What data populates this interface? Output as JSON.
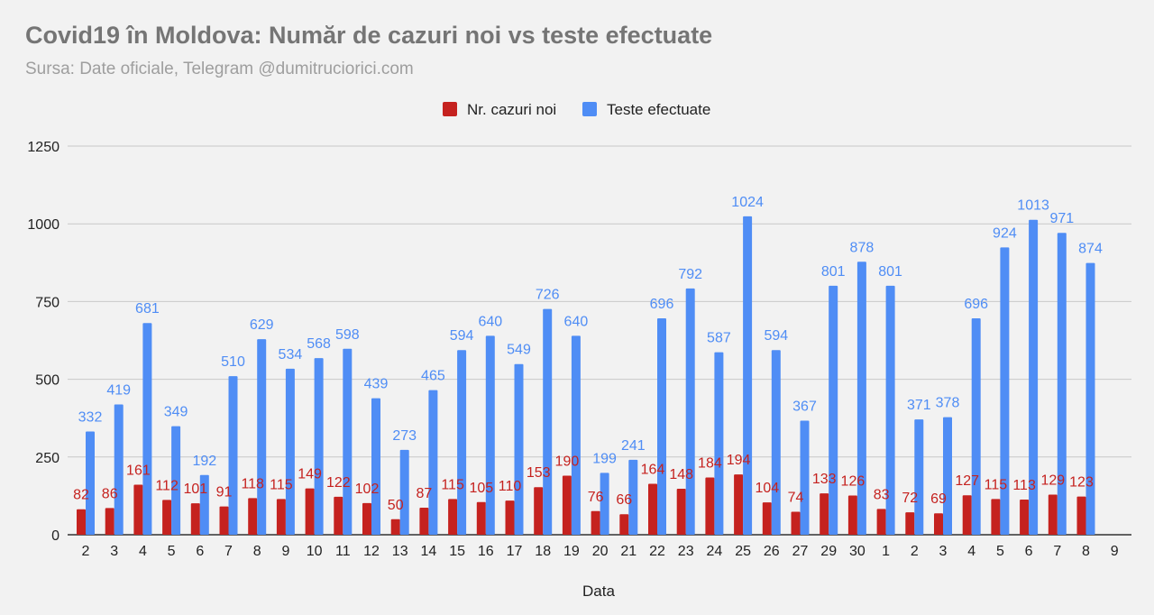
{
  "chart_data": {
    "type": "bar",
    "title": "Covid19 în Moldova: Număr de cazuri noi vs teste efectuate",
    "subtitle": "Sursa: Date oficiale, Telegram @dumitruciorici.com",
    "xlabel": "Data",
    "ylabel": "",
    "ylim": [
      0,
      1250
    ],
    "yticks": [
      0,
      250,
      500,
      750,
      1000,
      1250
    ],
    "grid": true,
    "legend_position": "top-center",
    "categories": [
      "2",
      "3",
      "4",
      "5",
      "6",
      "7",
      "8",
      "9",
      "10",
      "11",
      "12",
      "13",
      "14",
      "15",
      "16",
      "17",
      "18",
      "19",
      "20",
      "21",
      "22",
      "23",
      "24",
      "25",
      "26",
      "27",
      "29",
      "30",
      "1",
      "2",
      "3",
      "4",
      "5",
      "6",
      "7",
      "8",
      "9"
    ],
    "series": [
      {
        "name": "Nr. cazuri noi",
        "color": "#c5221f",
        "values": [
          82,
          86,
          161,
          112,
          101,
          91,
          118,
          115,
          149,
          122,
          102,
          50,
          87,
          115,
          105,
          110,
          153,
          190,
          76,
          66,
          164,
          148,
          184,
          194,
          104,
          74,
          133,
          126,
          83,
          72,
          69,
          127,
          115,
          113,
          129,
          123,
          null
        ]
      },
      {
        "name": "Teste efectuate",
        "color": "#4f8df5",
        "values": [
          332,
          419,
          681,
          349,
          192,
          510,
          629,
          534,
          568,
          598,
          439,
          273,
          465,
          594,
          640,
          549,
          726,
          640,
          199,
          241,
          696,
          792,
          587,
          1024,
          594,
          367,
          801,
          878,
          801,
          371,
          378,
          696,
          924,
          1013,
          971,
          874,
          null
        ]
      }
    ]
  }
}
